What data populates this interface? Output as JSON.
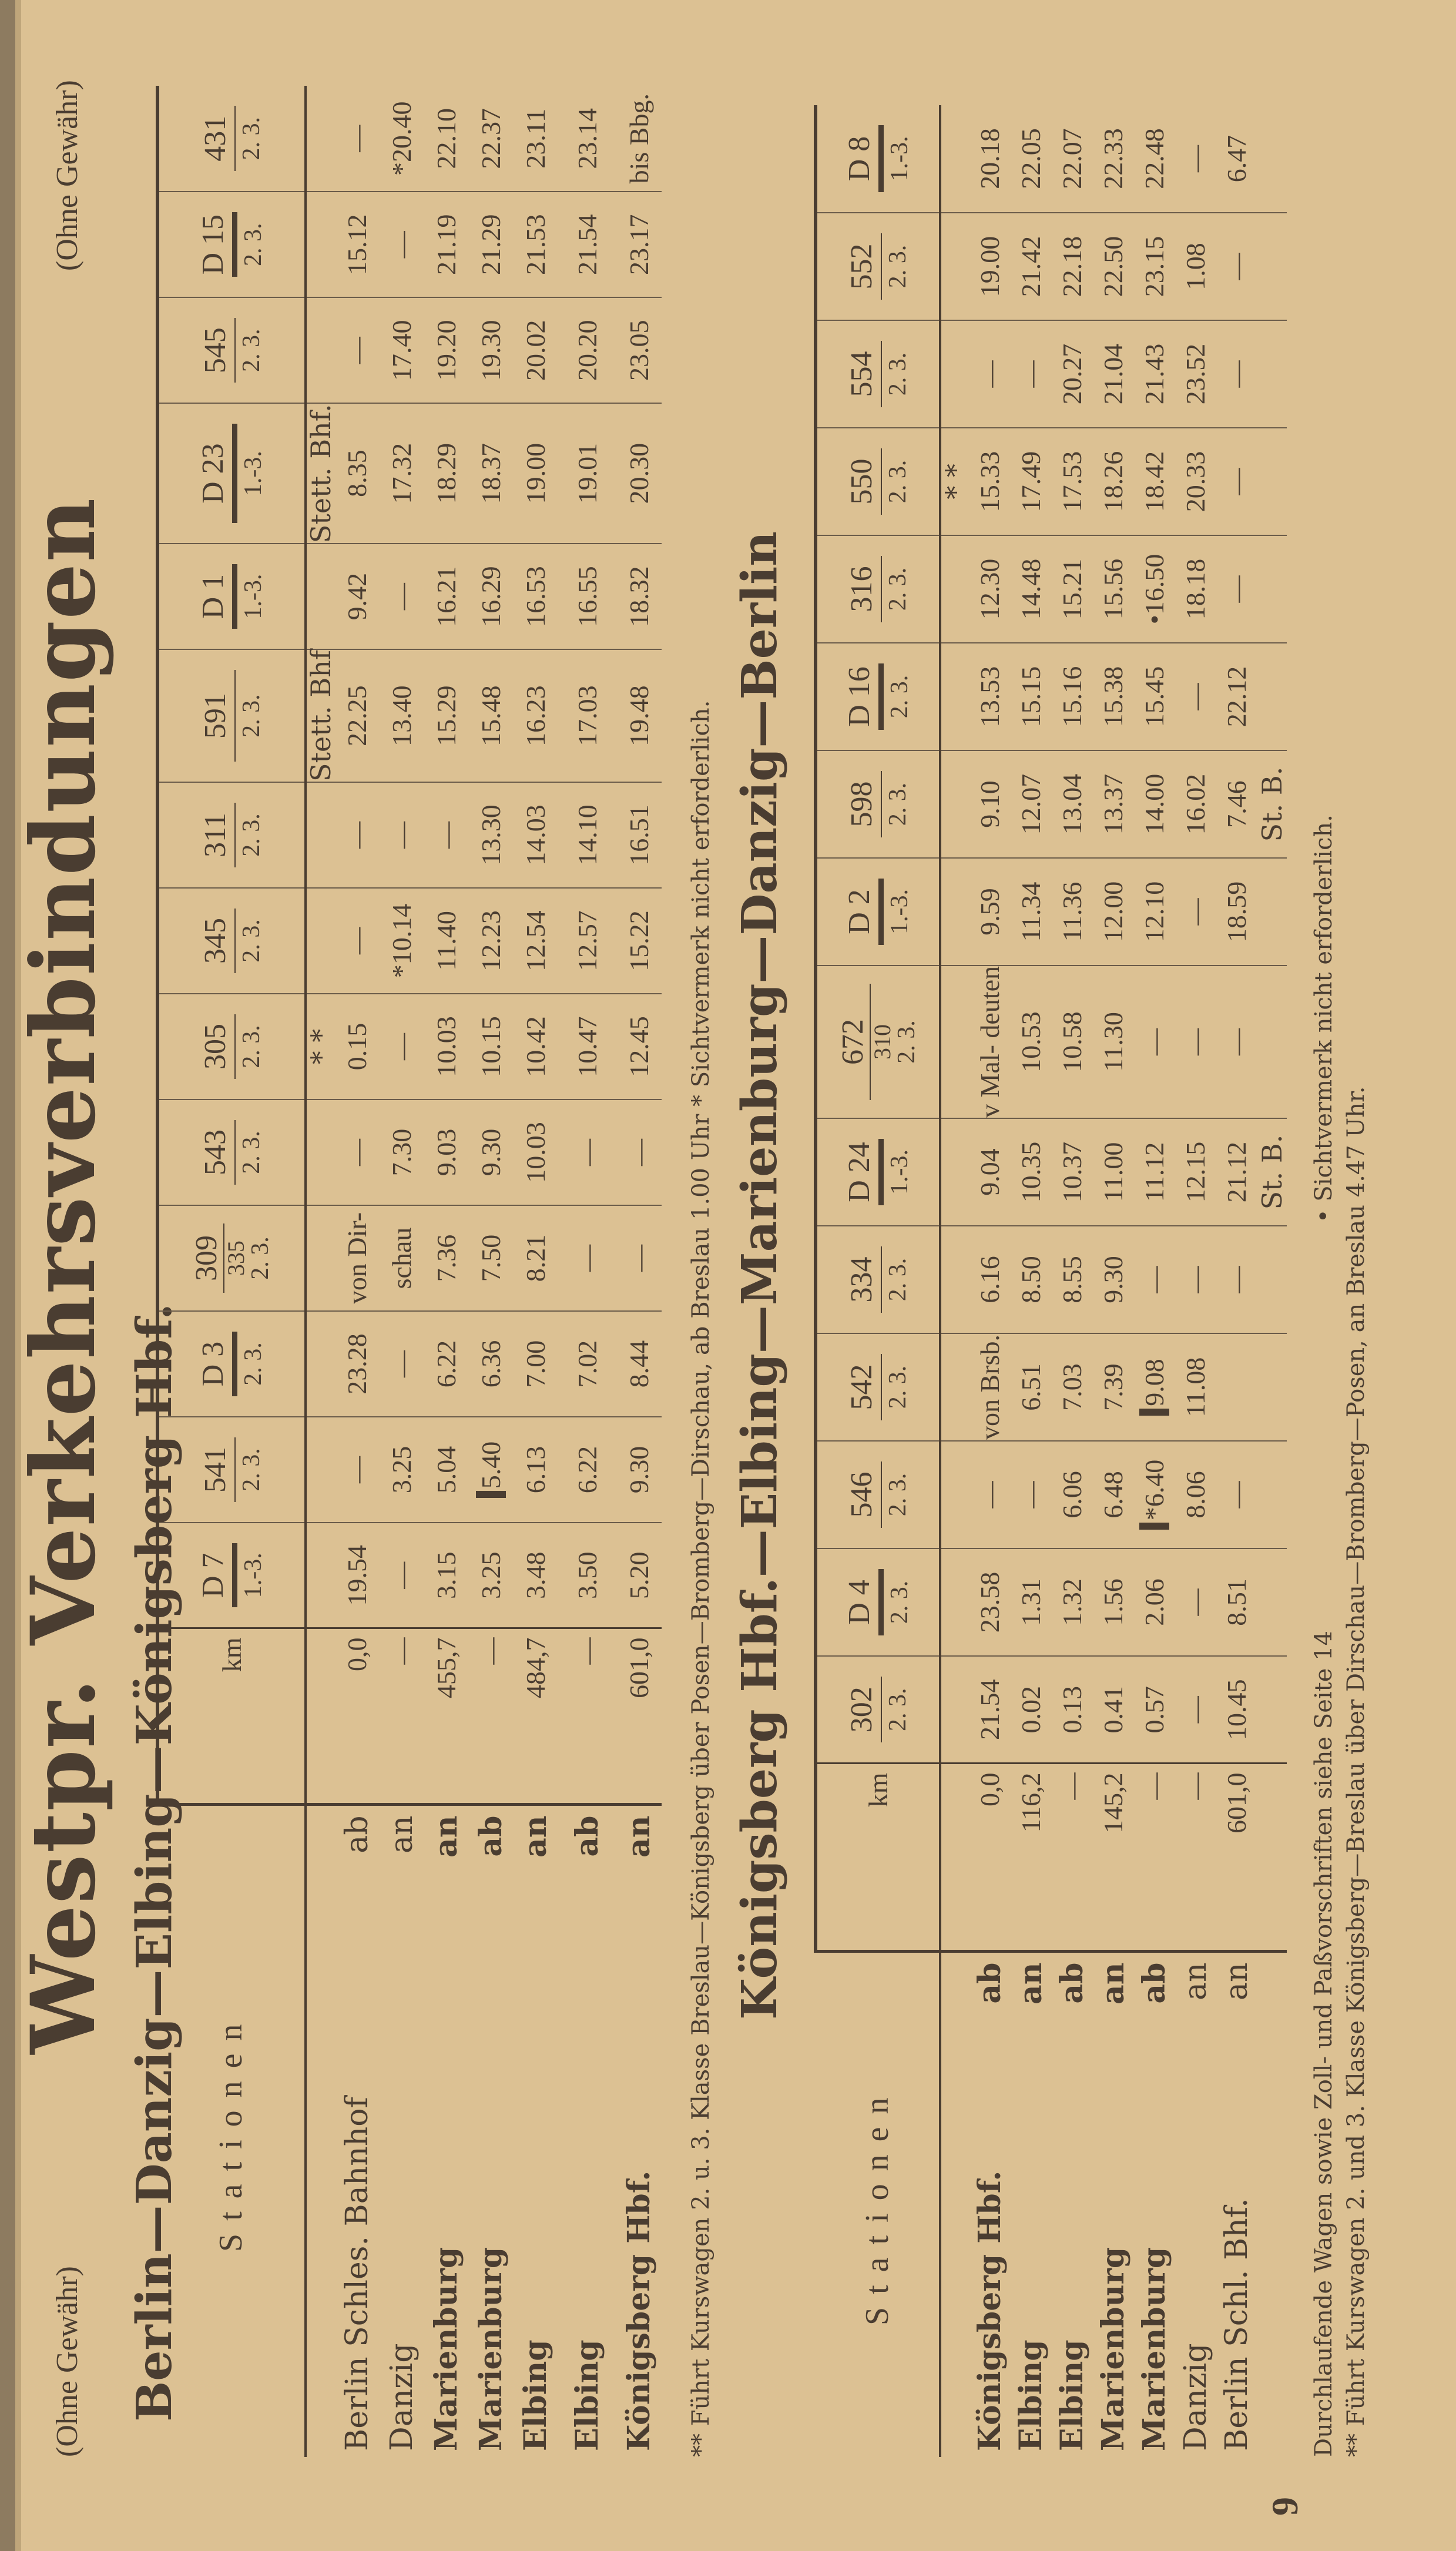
{
  "page": {
    "number": "9",
    "disclaimer_left": "(Ohne Gewähr)",
    "disclaimer_right": "(Ohne Gewähr)",
    "title": "Westpr. Verkehrsverbindungen"
  },
  "table1": {
    "title": "Berlin—Danzig—Elbing—Königsberg Hbf.",
    "station_header": "Stationen",
    "km_header": "km",
    "trains": [
      {
        "no": "D 7",
        "cls": "1.-3.",
        "d": true
      },
      {
        "no": "541",
        "cls": "2. 3."
      },
      {
        "no": "D 3",
        "cls": "2. 3.",
        "d": true
      },
      {
        "no": "309",
        "sub": "335",
        "cls": "2. 3."
      },
      {
        "no": "543",
        "cls": "2. 3."
      },
      {
        "no": "305",
        "cls": "2. 3."
      },
      {
        "no": "345",
        "cls": "2. 3."
      },
      {
        "no": "311",
        "cls": "2. 3."
      },
      {
        "no": "591",
        "cls": "2. 3."
      },
      {
        "no": "D 1",
        "cls": "1.-3.",
        "d": true
      },
      {
        "no": "D 23",
        "cls": "1.-3.",
        "d": true
      },
      {
        "no": "545",
        "cls": "2. 3."
      },
      {
        "no": "D 15",
        "cls": "2. 3.",
        "d": true
      },
      {
        "no": "431",
        "cls": "2. 3."
      }
    ],
    "pre_notes": [
      "",
      "",
      "",
      "",
      "",
      "* *",
      "",
      "",
      "Stett. Bhf",
      "",
      "Stett. Bhf.",
      "",
      "",
      ""
    ],
    "rows": [
      {
        "station": "Berlin Schles. Bahnhof",
        "dir": "ab",
        "bold": false,
        "km": "0,0",
        "times": [
          "19.54",
          "—",
          "23.28",
          "von Dir-",
          "—",
          "0.15",
          "—",
          "—",
          "22.25",
          "9.42",
          "8.35",
          "—",
          "15.12",
          "—"
        ]
      },
      {
        "station": "Danzig",
        "dir": "an",
        "bold": false,
        "km": "—",
        "times": [
          "—",
          "3.25",
          "—",
          "schau",
          "7.30",
          "—",
          "*10.14",
          "—",
          "13.40",
          "—",
          "17.32",
          "17.40",
          "—",
          "*20.40"
        ]
      },
      {
        "station": "Marienburg",
        "dir": "an",
        "bold": true,
        "km": "455,7",
        "times": [
          "3.15",
          "5.04",
          "6.22",
          "7.36",
          "9.03",
          "10.03",
          "11.40",
          "—",
          "15.29",
          "16.21",
          "18.29",
          "19.20",
          "21.19",
          "22.10"
        ]
      },
      {
        "station": "Marienburg",
        "dir": "ab",
        "bold": true,
        "km": "—",
        "times": [
          "3.25",
          "5.40",
          "6.36",
          "7.50",
          "9.30",
          "10.15",
          "12.23",
          "13.30",
          "15.48",
          "16.29",
          "18.37",
          "19.30",
          "21.29",
          "22.37"
        ]
      },
      {
        "station": "Elbing",
        "dir": "an",
        "bold": true,
        "km": "484,7",
        "times": [
          "3.48",
          "6.13",
          "7.00",
          "8.21",
          "10.03",
          "10.42",
          "12.54",
          "14.03",
          "16.23",
          "16.53",
          "19.00",
          "20.02",
          "21.53",
          "23.11"
        ]
      },
      {
        "station": "Elbing",
        "dir": "ab",
        "bold": true,
        "km": "—",
        "gap": true,
        "times": [
          "3.50",
          "6.22",
          "7.02",
          "—",
          "—",
          "10.47",
          "12.57",
          "14.10",
          "17.03",
          "16.55",
          "19.01",
          "20.20",
          "21.54",
          "23.14"
        ]
      },
      {
        "station": "Königsberg Hbf.",
        "dir": "an",
        "bold": true,
        "km": "601,0",
        "times": [
          "5.20",
          "9.30",
          "8.44",
          "—",
          "—",
          "12.45",
          "15.22",
          "16.51",
          "19.48",
          "18.32",
          "20.30",
          "23.05",
          "23.17",
          "bis Bbg."
        ]
      }
    ],
    "marked": [
      [
        3,
        1
      ]
    ],
    "footnotes": [
      "** Führt Kurswagen 2. u. 3. Klasse Breslau—Königsberg über Posen—Bromberg—Dirschau, ab Breslau 1.00 Uhr   * Sichtvermerk nicht erforderlich."
    ]
  },
  "table2": {
    "title": "Königsberg Hbf.—Elbing—Marienburg—Danzig—Berlin",
    "station_header": "Stationen",
    "km_header": "km",
    "trains": [
      {
        "no": "302",
        "cls": "2. 3."
      },
      {
        "no": "D 4",
        "cls": "2. 3.",
        "d": true
      },
      {
        "no": "546",
        "cls": "2. 3."
      },
      {
        "no": "542",
        "cls": "2. 3."
      },
      {
        "no": "334",
        "cls": "2. 3."
      },
      {
        "no": "D 24",
        "cls": "1.-3.",
        "d": true
      },
      {
        "no": "672",
        "sub": "310",
        "cls": "2. 3."
      },
      {
        "no": "D 2",
        "cls": "1.-3.",
        "d": true
      },
      {
        "no": "598",
        "cls": "2. 3."
      },
      {
        "no": "D 16",
        "cls": "2. 3.",
        "d": true
      },
      {
        "no": "316",
        "cls": "2. 3."
      },
      {
        "no": "550",
        "cls": "2. 3."
      },
      {
        "no": "554",
        "cls": "2. 3."
      },
      {
        "no": "552",
        "cls": "2. 3."
      },
      {
        "no": "D 8",
        "cls": "1.-3.",
        "d": true
      }
    ],
    "pre_notes": [
      "",
      "",
      "",
      "",
      "",
      "",
      "",
      "",
      "",
      "",
      "",
      "* *",
      "",
      "",
      ""
    ],
    "rows": [
      {
        "station": "Königsberg Hbf.",
        "dir": "ab",
        "bold": true,
        "km": "0,0",
        "times": [
          "21.54",
          "23.58",
          "—",
          "von Brsb.",
          "6.16",
          "9.04",
          "v Mal- deuten",
          "9.59",
          "9.10",
          "13.53",
          "12.30",
          "15.33",
          "—",
          "19.00",
          "20.18"
        ]
      },
      {
        "station": "Elbing",
        "dir": "an",
        "bold": true,
        "km": "116,2",
        "times": [
          "0.02",
          "1.31",
          "—",
          "6.51",
          "8.50",
          "10.35",
          "10.53",
          "11.34",
          "12.07",
          "15.15",
          "14.48",
          "17.49",
          "—",
          "21.42",
          "22.05"
        ]
      },
      {
        "station": "Elbing",
        "dir": "ab",
        "bold": true,
        "km": "—",
        "times": [
          "0.13",
          "1.32",
          "6.06",
          "7.03",
          "8.55",
          "10.37",
          "10.58",
          "11.36",
          "13.04",
          "15.16",
          "15.21",
          "17.53",
          "20.27",
          "22.18",
          "22.07"
        ]
      },
      {
        "station": "Marienburg",
        "dir": "an",
        "bold": true,
        "km": "145,2",
        "times": [
          "0.41",
          "1.56",
          "6.48",
          "7.39",
          "9.30",
          "11.00",
          "11.30",
          "12.00",
          "13.37",
          "15.38",
          "15.56",
          "18.26",
          "21.04",
          "22.50",
          "22.33"
        ]
      },
      {
        "station": "Marienburg",
        "dir": "ab",
        "bold": true,
        "km": "—",
        "times": [
          "0.57",
          "2.06",
          "*6.40",
          "9.08",
          "—",
          "11.12",
          "—",
          "12.10",
          "14.00",
          "15.45",
          "•16.50",
          "18.42",
          "21.43",
          "23.15",
          "22.48"
        ]
      },
      {
        "station": "Danzig",
        "dir": "an",
        "bold": false,
        "km": "—",
        "times": [
          "—",
          "—",
          "8.06",
          "11.08",
          "—",
          "12.15",
          "—",
          "—",
          "16.02",
          "—",
          "18.18",
          "20.33",
          "23.52",
          "1.08",
          "—"
        ]
      },
      {
        "station": "Berlin Schl. Bhf.",
        "dir": "an",
        "bold": false,
        "km": "601,0",
        "times": [
          "10.45",
          "8.51",
          "—",
          "",
          "—",
          "21.12",
          "—",
          "18.59",
          "7.46",
          "22.12",
          "—",
          "—",
          "—",
          "—",
          "6.47"
        ]
      }
    ],
    "post_notes": [
      "",
      "",
      "",
      "",
      "",
      "St. B.",
      "",
      "",
      "St. B.",
      "",
      "",
      "",
      "",
      "",
      ""
    ],
    "marked": [
      [
        4,
        2
      ],
      [
        4,
        3
      ]
    ],
    "footnotes": [
      "Durchlaufende Wagen sowie Zoll- und Paßvorschriften siehe Seite 14",
      "• Sichtvermerk nicht erforderlich.",
      "** Führt Kurswagen 2. und 3. Klasse Königsberg—Breslau über Dirschau—Bromberg—Posen, an Breslau 4.47 Uhr."
    ]
  }
}
